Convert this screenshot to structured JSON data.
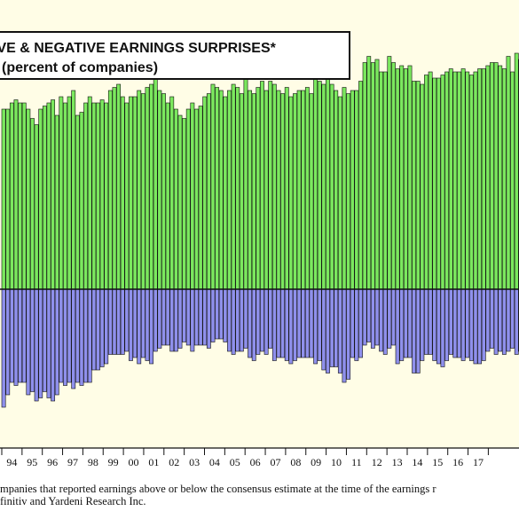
{
  "title": {
    "line1": "IVE & NEGATIVE EARNINGS SURPRISES*",
    "line2": "(percent of companies)"
  },
  "footnote": "mpanies that reported earnings above or below the consensus estimate at the time of the earnings r",
  "source": "finitiv and Yardeni Research Inc.",
  "colors": {
    "plot_background": "#fffde6",
    "positive_bar": "#7be85e",
    "negative_bar": "#8f90ec",
    "outline": "#111111"
  },
  "chart_data": {
    "type": "bar",
    "title": "IVE & NEGATIVE EARNINGS SURPRISES*",
    "subtitle": "(percent of companies)",
    "x_tick_labels": [
      "94",
      "95",
      "96",
      "97",
      "98",
      "99",
      "00",
      "01",
      "02",
      "03",
      "04",
      "05",
      "06",
      "07",
      "08",
      "09",
      "10",
      "11",
      "12",
      "13",
      "14",
      "15",
      "16",
      "17"
    ],
    "ylim": [
      -40,
      80
    ],
    "grid": false,
    "series": [
      {
        "name": "Positive",
        "values": [
          58,
          58,
          60,
          61,
          60,
          60,
          58,
          55,
          53,
          58,
          59,
          60,
          61,
          56,
          62,
          60,
          62,
          64,
          56,
          57,
          60,
          62,
          60,
          60,
          61,
          60,
          64,
          65,
          66,
          62,
          60,
          62,
          62,
          64,
          63,
          65,
          66,
          68,
          64,
          63,
          60,
          62,
          58,
          56,
          55,
          58,
          60,
          58,
          59,
          62,
          63,
          66,
          65,
          64,
          62,
          64,
          66,
          65,
          63,
          68,
          64,
          63,
          65,
          67,
          64,
          67,
          66,
          64,
          63,
          65,
          62,
          63,
          64,
          64,
          65,
          63,
          68,
          67,
          66,
          68,
          66,
          64,
          62,
          65,
          63,
          64,
          64,
          67,
          73,
          75,
          73,
          74,
          70,
          70,
          75,
          73,
          71,
          72,
          71,
          72,
          67,
          67,
          66,
          69,
          70,
          68,
          68,
          69,
          70,
          71,
          70,
          70,
          71,
          70,
          69,
          70,
          71,
          71,
          72,
          73,
          73,
          72,
          71,
          75,
          70,
          76,
          74,
          76,
          75,
          76,
          76
        ]
      },
      {
        "name": "Negative",
        "values": [
          -38,
          -34,
          -30,
          -31,
          -30,
          -30,
          -34,
          -33,
          -36,
          -35,
          -33,
          -35,
          -36,
          -34,
          -30,
          -31,
          -30,
          -32,
          -30,
          -31,
          -30,
          -30,
          -26,
          -26,
          -25,
          -24,
          -21,
          -21,
          -21,
          -21,
          -20,
          -23,
          -22,
          -24,
          -22,
          -23,
          -24,
          -20,
          -19,
          -18,
          -18,
          -20,
          -20,
          -19,
          -17,
          -18,
          -20,
          -18,
          -18,
          -18,
          -19,
          -17,
          -16,
          -16,
          -17,
          -20,
          -21,
          -20,
          -20,
          -19,
          -22,
          -23,
          -21,
          -20,
          -21,
          -19,
          -23,
          -22,
          -22,
          -23,
          -24,
          -23,
          -22,
          -22,
          -22,
          -22,
          -24,
          -23,
          -26,
          -27,
          -25,
          -25,
          -27,
          -30,
          -29,
          -22,
          -23,
          -22,
          -18,
          -17,
          -19,
          -18,
          -20,
          -21,
          -19,
          -18,
          -24,
          -23,
          -22,
          -22,
          -27,
          -27,
          -23,
          -21,
          -21,
          -23,
          -24,
          -25,
          -23,
          -21,
          -22,
          -22,
          -23,
          -22,
          -23,
          -24,
          -24,
          -23,
          -20,
          -19,
          -21,
          -20,
          -21,
          -20,
          -19,
          -21,
          -20,
          -18,
          -17,
          -17,
          -16
        ]
      }
    ]
  }
}
